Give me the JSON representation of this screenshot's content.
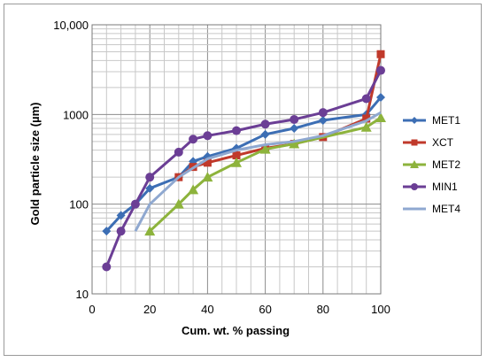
{
  "chart_data": {
    "type": "line",
    "title": "",
    "xlabel": "Cum. wt. % passing",
    "ylabel": "Gold particle size (µm)",
    "xlim": [
      0,
      100
    ],
    "ylim": [
      10,
      10000
    ],
    "yscale": "log",
    "grid": true,
    "legend_position": "right",
    "x_ticks": [
      "0",
      "20",
      "40",
      "60",
      "80",
      "100"
    ],
    "y_ticks": [
      "10",
      "100",
      "1000",
      "10,000"
    ],
    "series": [
      {
        "name": "MET1",
        "color": "#3c6eb4",
        "marker": "diamond",
        "points": [
          [
            5,
            50
          ],
          [
            10,
            75
          ],
          [
            15,
            100
          ],
          [
            20,
            150
          ],
          [
            30,
            200
          ],
          [
            35,
            300
          ],
          [
            40,
            340
          ],
          [
            50,
            420
          ],
          [
            60,
            600
          ],
          [
            70,
            700
          ],
          [
            80,
            860
          ],
          [
            95,
            1000
          ],
          [
            100,
            1550
          ]
        ]
      },
      {
        "name": "XCT",
        "color": "#c0392b",
        "marker": "square",
        "points": [
          [
            30,
            200
          ],
          [
            35,
            260
          ],
          [
            40,
            290
          ],
          [
            50,
            350
          ],
          [
            60,
            420
          ],
          [
            70,
            470
          ],
          [
            80,
            560
          ],
          [
            95,
            900
          ],
          [
            100,
            4700
          ]
        ]
      },
      {
        "name": "MET2",
        "color": "#8db33c",
        "marker": "triangle",
        "points": [
          [
            20,
            50
          ],
          [
            30,
            100
          ],
          [
            35,
            145
          ],
          [
            40,
            200
          ],
          [
            50,
            290
          ],
          [
            60,
            410
          ],
          [
            70,
            470
          ],
          [
            95,
            720
          ],
          [
            100,
            920
          ]
        ]
      },
      {
        "name": "MIN1",
        "color": "#6b3e95",
        "marker": "circle",
        "points": [
          [
            5,
            20
          ],
          [
            10,
            50
          ],
          [
            15,
            100
          ],
          [
            20,
            200
          ],
          [
            30,
            380
          ],
          [
            35,
            530
          ],
          [
            40,
            580
          ],
          [
            50,
            660
          ],
          [
            60,
            780
          ],
          [
            70,
            880
          ],
          [
            80,
            1050
          ],
          [
            95,
            1500
          ],
          [
            100,
            3100
          ]
        ]
      },
      {
        "name": "MET4",
        "color": "#8fa8d0",
        "marker": "none",
        "points": [
          [
            15,
            50
          ],
          [
            20,
            100
          ],
          [
            30,
            200
          ],
          [
            40,
            320
          ],
          [
            50,
            400
          ],
          [
            60,
            460
          ],
          [
            70,
            500
          ],
          [
            80,
            580
          ],
          [
            95,
            850
          ],
          [
            100,
            1050
          ]
        ]
      }
    ]
  }
}
